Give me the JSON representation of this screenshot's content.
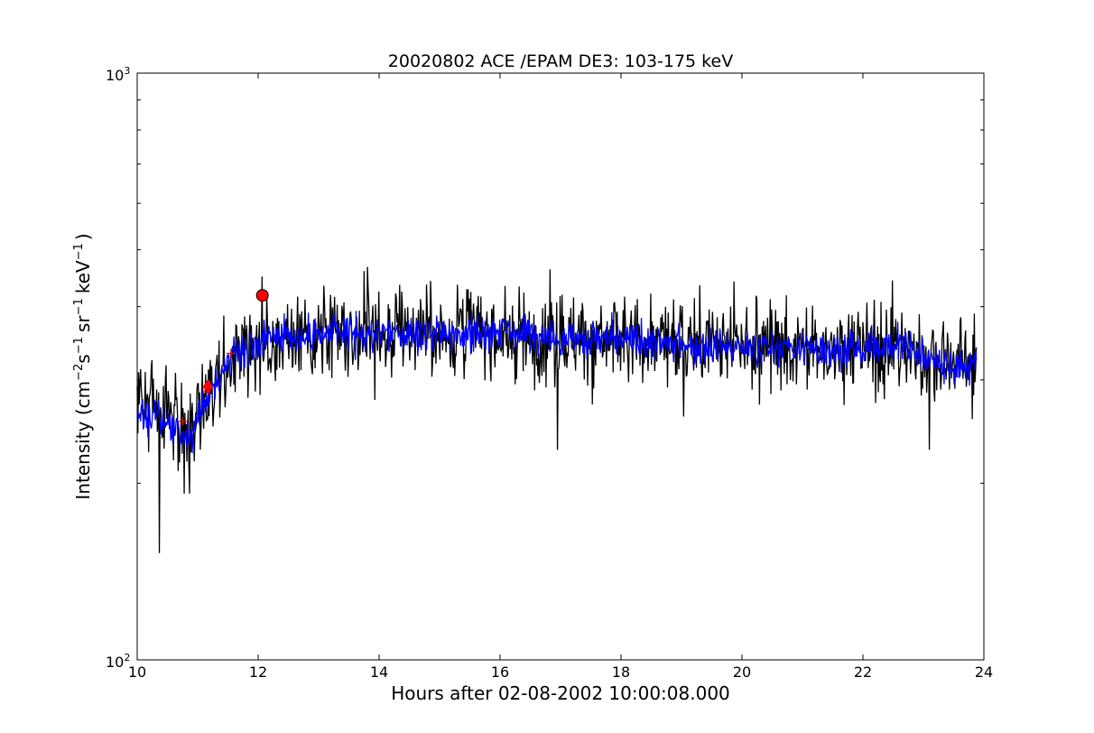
{
  "chart_data": {
    "type": "line",
    "title": "20020802 ACE /EPAM DE3: 103-175 keV",
    "xlabel": "Hours after 02-08-2002 10:00:08.000",
    "ylabel": {
      "main": "Intensity (cm",
      "sup1": "−2",
      "s": "s",
      "sup2": "−1",
      "sr": "sr",
      "sup3": "−1",
      "kev": "keV",
      "sup4": "−1",
      "close": ")"
    },
    "xlim": [
      10,
      24
    ],
    "ylim": [
      100,
      1000
    ],
    "yscale": "log",
    "grid": false,
    "x_ticks": [
      10,
      12,
      14,
      16,
      18,
      20,
      22,
      24
    ],
    "x_tick_labels": [
      "10",
      "12",
      "14",
      "16",
      "18",
      "20",
      "22",
      "24"
    ],
    "y_tick_labels": [
      {
        "value": 100,
        "base": "10",
        "exp": "2"
      },
      {
        "value": 1000,
        "base": "10",
        "exp": "3"
      }
    ],
    "colors": {
      "raw": "#000000",
      "smoothed": "#0000ff",
      "marker": "#ff0000"
    },
    "series_shape": {
      "x_start": 10.0,
      "x_end": 23.88,
      "sample_step_hours": 0.0111,
      "trend": [
        [
          10.0,
          265
        ],
        [
          10.5,
          255
        ],
        [
          10.85,
          238
        ],
        [
          11.2,
          280
        ],
        [
          11.6,
          335
        ],
        [
          12.2,
          355
        ],
        [
          13.0,
          357
        ],
        [
          14.0,
          360
        ],
        [
          16.0,
          362
        ],
        [
          17.0,
          355
        ],
        [
          18.0,
          350
        ],
        [
          19.0,
          345
        ],
        [
          20.0,
          342
        ],
        [
          21.0,
          340
        ],
        [
          22.0,
          338
        ],
        [
          22.6,
          345
        ],
        [
          23.0,
          330
        ],
        [
          23.5,
          318
        ],
        [
          23.88,
          318
        ]
      ],
      "raw_noise_log10": 0.055,
      "smoothed_noise_log10": 0.022
    },
    "raw_spikes": [
      {
        "x": 10.37,
        "y": 152
      },
      {
        "x": 10.23,
        "y": 315
      },
      {
        "x": 10.78,
        "y": 192
      },
      {
        "x": 10.87,
        "y": 192
      },
      {
        "x": 12.07,
        "y": 450
      },
      {
        "x": 13.75,
        "y": 460
      },
      {
        "x": 16.95,
        "y": 228
      },
      {
        "x": 19.3,
        "y": 435
      },
      {
        "x": 23.1,
        "y": 228
      }
    ],
    "markers": [
      {
        "name": "circle",
        "x": 12.07,
        "y": 418
      },
      {
        "name": "diamond",
        "x": 11.17,
        "y": 292
      },
      {
        "name": "plus",
        "x": 11.55,
        "y": 333
      },
      {
        "name": "plus",
        "x": 10.75,
        "y": 255
      }
    ]
  }
}
